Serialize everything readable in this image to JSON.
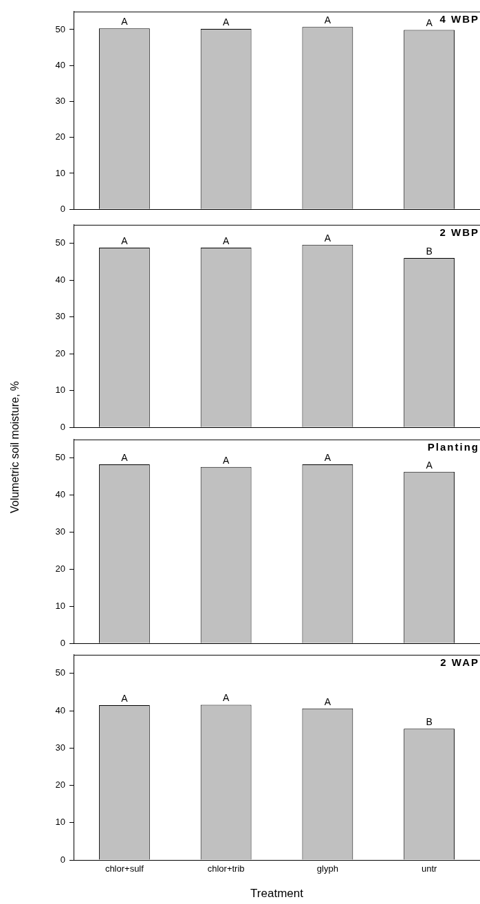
{
  "chart_data": [
    {
      "type": "bar",
      "title": "4 WBP",
      "categories": [
        null,
        null,
        null,
        null
      ],
      "values": [
        50.3,
        50.2,
        50.7,
        49.9
      ],
      "value_labels": [
        "A",
        "A",
        "A",
        "A"
      ],
      "color": "#c0c0c0",
      "ylim": [
        0,
        55
      ],
      "yticks": [
        0,
        10,
        20,
        30,
        40,
        50
      ],
      "grid": false,
      "tick_labels": "y"
    },
    {
      "type": "bar",
      "title": "2 WBP",
      "categories": [
        null,
        null,
        null,
        null
      ],
      "values": [
        48.8,
        48.8,
        49.6,
        46.0
      ],
      "value_labels": [
        "A",
        "A",
        "A",
        "B"
      ],
      "color": "#c0c0c0",
      "ylim": [
        0,
        55
      ],
      "yticks": [
        0,
        10,
        20,
        30,
        40,
        50
      ],
      "grid": false,
      "tick_labels": "y"
    },
    {
      "type": "bar",
      "title": "Planting",
      "ylabel": "Volumetric soil moisture, %",
      "categories": [
        null,
        null,
        null,
        null
      ],
      "values": [
        48.3,
        47.6,
        48.3,
        46.3
      ],
      "value_labels": [
        "A",
        "A",
        "A",
        "A"
      ],
      "color": "#c0c0c0",
      "ylim": [
        0,
        55
      ],
      "yticks": [
        0,
        10,
        20,
        30,
        40,
        50
      ],
      "grid": false,
      "tick_labels": "y"
    },
    {
      "type": "bar",
      "title": "2 WAP",
      "xlabel": "Treatment",
      "categories": [
        "chlor+sulf",
        "chlor+trib",
        "glyph",
        "untr"
      ],
      "values": [
        41.5,
        41.6,
        40.6,
        35.2
      ],
      "value_labels": [
        "A",
        "A",
        "A",
        "B"
      ],
      "color": "#c0c0c0",
      "ylim": [
        0,
        55
      ],
      "yticks": [
        0,
        10,
        20,
        30,
        40,
        50
      ],
      "grid": false
    }
  ]
}
